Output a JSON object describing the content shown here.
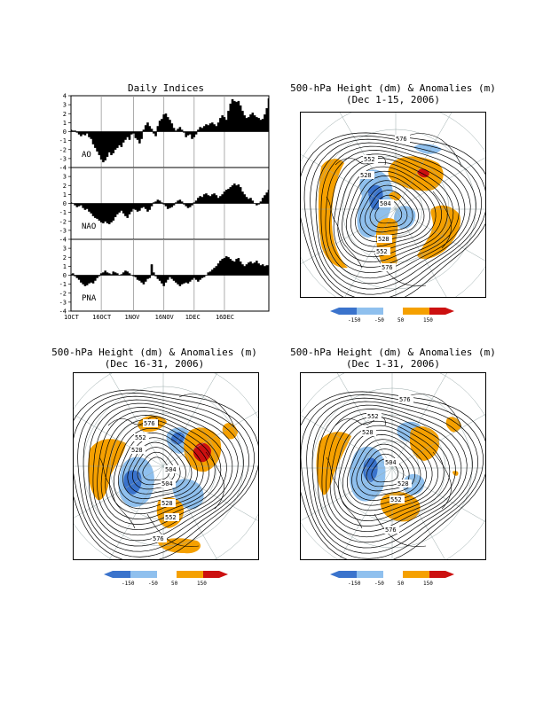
{
  "page_label": "",
  "chart_data": [
    {
      "type": "bar",
      "title": "Daily Indices",
      "x_tick_labels": [
        "1OCT",
        "16OCT",
        "1NOV",
        "16NOV",
        "1DEC",
        "16DEC"
      ],
      "y_ticks": [
        4,
        3,
        2,
        1,
        0,
        -1,
        -2,
        -3,
        -4
      ],
      "ylim": [
        -4,
        4
      ],
      "grid": true,
      "start_date": "2006-10-01",
      "series": [
        {
          "name": "AO",
          "values": [
            0.2,
            0.1,
            0.1,
            -0.1,
            -0.3,
            -0.5,
            -0.3,
            -0.4,
            -0.2,
            -0.6,
            -0.8,
            -1.4,
            -1.8,
            -2.2,
            -2.6,
            -3.1,
            -3.4,
            -3.2,
            -2.8,
            -2.3,
            -2.6,
            -2.4,
            -2.0,
            -1.8,
            -1.5,
            -1.7,
            -1.2,
            -0.9,
            -0.6,
            -0.9,
            -0.3,
            -0.2,
            -0.7,
            -0.9,
            -1.3,
            -0.8,
            0.2,
            0.7,
            1.0,
            0.6,
            0.3,
            -0.2,
            -0.5,
            0.6,
            1.2,
            1.4,
            1.9,
            2.0,
            1.6,
            1.3,
            0.9,
            0.4,
            0.1,
            0.3,
            0.5,
            0.2,
            -0.1,
            -0.6,
            -0.4,
            -0.3,
            -0.8,
            -0.6,
            -0.3,
            0.2,
            0.5,
            0.4,
            0.6,
            0.8,
            0.7,
            0.9,
            1.0,
            0.8,
            0.6,
            1.0,
            1.5,
            1.8,
            1.6,
            1.3,
            2.3,
            3.1,
            3.6,
            3.4,
            3.3,
            3.4,
            2.9,
            2.3,
            1.8,
            1.5,
            1.6,
            1.9,
            2.1,
            1.8,
            1.6,
            1.5,
            1.3,
            1.4,
            1.9,
            2.6,
            3.7
          ]
        },
        {
          "name": "NAO",
          "values": [
            0.1,
            0.0,
            -0.2,
            -0.4,
            -0.3,
            -0.2,
            -0.5,
            -0.7,
            -0.6,
            -0.9,
            -1.1,
            -1.4,
            -1.6,
            -1.7,
            -1.9,
            -2.1,
            -2.2,
            -2.0,
            -2.2,
            -2.3,
            -2.1,
            -1.9,
            -1.5,
            -1.2,
            -1.0,
            -0.8,
            -1.1,
            -1.4,
            -1.6,
            -1.2,
            -0.9,
            -0.6,
            -0.7,
            -0.9,
            -0.8,
            -0.5,
            -0.4,
            -0.6,
            -0.9,
            -0.7,
            -0.3,
            0.1,
            0.2,
            0.4,
            0.3,
            0.1,
            -0.1,
            -0.3,
            -0.6,
            -0.5,
            -0.4,
            -0.2,
            0.1,
            0.3,
            0.4,
            0.2,
            -0.1,
            -0.3,
            -0.5,
            -0.4,
            -0.2,
            0.1,
            0.3,
            0.6,
            0.8,
            0.7,
            1.0,
            1.1,
            0.9,
            0.8,
            1.0,
            1.1,
            0.9,
            0.6,
            0.8,
            1.0,
            1.3,
            1.5,
            1.6,
            1.8,
            2.0,
            2.2,
            2.0,
            2.1,
            1.8,
            1.3,
            1.0,
            0.7,
            0.5,
            0.6,
            0.3,
            0.0,
            -0.2,
            -0.1,
            0.2,
            0.6,
            0.9,
            1.2,
            1.5
          ]
        },
        {
          "name": "PNA",
          "values": [
            0.1,
            0.2,
            -0.1,
            -0.3,
            -0.5,
            -0.8,
            -1.0,
            -1.2,
            -1.1,
            -0.9,
            -0.8,
            -0.9,
            -0.6,
            -0.3,
            -0.1,
            0.2,
            0.3,
            0.5,
            0.3,
            0.2,
            0.1,
            0.4,
            0.3,
            0.2,
            0.0,
            0.1,
            0.3,
            0.5,
            0.4,
            0.2,
            0.0,
            -0.1,
            -0.2,
            -0.5,
            -0.6,
            -0.8,
            -1.0,
            -0.7,
            -0.4,
            -0.3,
            1.2,
            0.3,
            -0.1,
            -0.4,
            -0.6,
            -0.9,
            -1.2,
            -0.8,
            -0.5,
            -0.2,
            -0.4,
            -0.6,
            -0.8,
            -1.0,
            -1.2,
            -1.0,
            -0.9,
            -0.8,
            -0.9,
            -0.7,
            -0.5,
            -0.3,
            -0.5,
            -0.7,
            -0.5,
            -0.3,
            -0.2,
            0.0,
            0.3,
            0.4,
            0.6,
            0.8,
            1.0,
            1.3,
            1.6,
            1.8,
            1.9,
            2.1,
            2.0,
            1.8,
            1.6,
            1.5,
            1.8,
            1.9,
            1.5,
            1.2,
            1.0,
            1.2,
            1.4,
            1.5,
            1.3,
            1.4,
            1.6,
            1.3,
            1.1,
            1.2,
            1.0,
            1.1,
            1.1
          ]
        }
      ]
    },
    {
      "type": "map",
      "title": "500-hPa Height (dm) & Anomalies (m)",
      "subtitle": "(Dec 1-15, 2006)",
      "contour_labels": [
        "576",
        "552",
        "528",
        "504",
        "528",
        "552",
        "576"
      ],
      "anomaly_legend": [
        "-150",
        "-50",
        "50",
        "150"
      ]
    },
    {
      "type": "map",
      "title": "500-hPa Height (dm) & Anomalies (m)",
      "subtitle": "(Dec 16-31, 2006)",
      "contour_labels": [
        "576",
        "552",
        "528",
        "504",
        "528",
        "552",
        "576"
      ],
      "anomaly_legend": [
        "-150",
        "-50",
        "50",
        "150"
      ]
    },
    {
      "type": "map",
      "title": "500-hPa Height (dm) & Anomalies (m)",
      "subtitle": "(Dec 1-31, 2006)",
      "contour_labels": [
        "576",
        "552",
        "528",
        "504",
        "528",
        "552",
        "576"
      ],
      "anomaly_legend": [
        "-150",
        "-50",
        "50",
        "150"
      ]
    }
  ],
  "colors": {
    "strong_negative": "#3a73cc",
    "negative": "#8fc0ee",
    "positive": "#f5a000",
    "strong_positive": "#cc1010"
  }
}
